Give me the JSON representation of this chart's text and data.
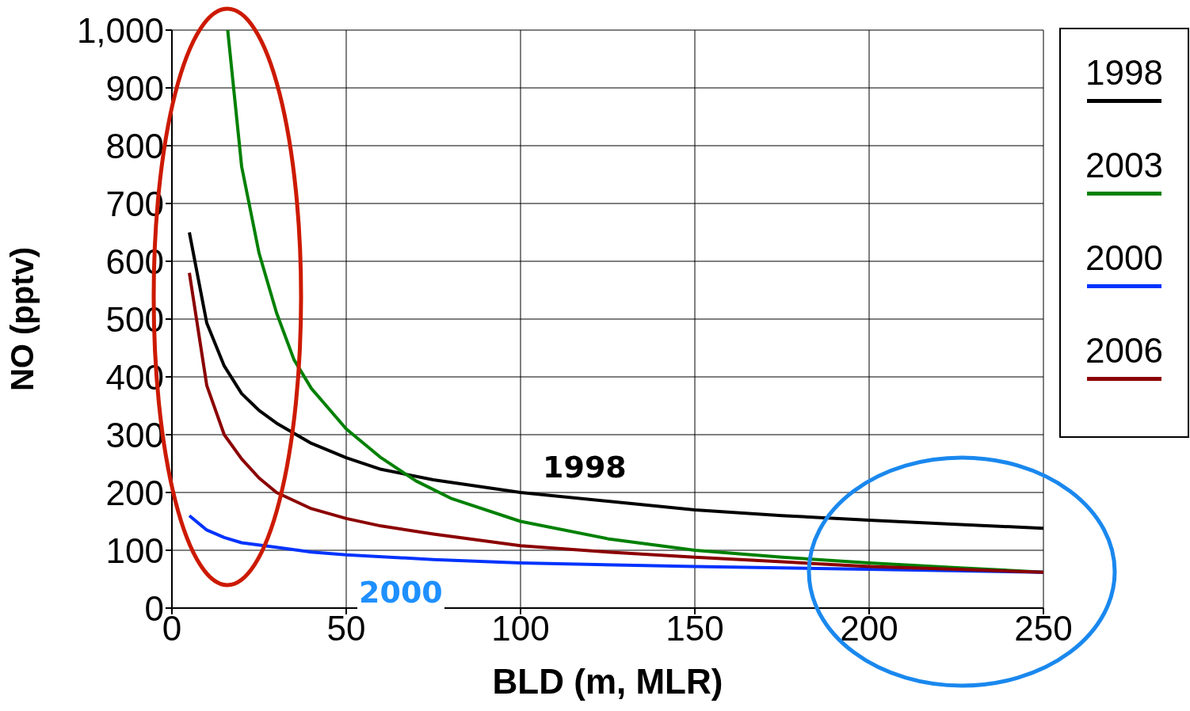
{
  "chart_data": {
    "type": "line",
    "xlabel": "BLD (m, MLR)",
    "ylabel": "NO (pptv)",
    "xlim": [
      0,
      250
    ],
    "xticks": [
      0,
      50,
      100,
      150,
      200,
      250
    ],
    "ylim": [
      0,
      1000
    ],
    "yticks": [
      0,
      100,
      200,
      300,
      400,
      500,
      600,
      700,
      800,
      900,
      {
        "value": 1000,
        "label": "1,000"
      }
    ],
    "grid": true,
    "legend": "right",
    "marker": "none",
    "line_style": "solid",
    "series": [
      {
        "name": "1998",
        "color": "#000000",
        "x": [
          5,
          10,
          15,
          20,
          25,
          30,
          40,
          50,
          60,
          75,
          100,
          125,
          150,
          175,
          200,
          225,
          250
        ],
        "values": [
          650,
          493,
          419,
          371,
          342,
          320,
          285,
          260,
          240,
          222,
          200,
          185,
          170,
          160,
          152,
          145,
          138
        ]
      },
      {
        "name": "2003",
        "color": "#008000",
        "x": [
          16,
          20,
          25,
          30,
          35,
          40,
          50,
          60,
          70,
          80,
          100,
          125,
          150,
          175,
          200,
          225,
          250
        ],
        "values": [
          1000,
          764,
          614,
          511,
          430,
          380,
          310,
          260,
          220,
          190,
          150,
          120,
          100,
          88,
          78,
          70,
          62
        ]
      },
      {
        "name": "2000",
        "color": "#0033ff",
        "x": [
          5,
          10,
          15,
          20,
          30,
          40,
          50,
          75,
          100,
          150,
          200,
          250
        ],
        "values": [
          160,
          135,
          122,
          113,
          105,
          97,
          92,
          84,
          78,
          72,
          67,
          62
        ]
      },
      {
        "name": "2006",
        "color": "#8b0000",
        "x": [
          5,
          10,
          15,
          20,
          25,
          30,
          40,
          50,
          60,
          75,
          100,
          125,
          150,
          175,
          200,
          225,
          250
        ],
        "values": [
          580,
          385,
          300,
          258,
          225,
          200,
          172,
          155,
          142,
          128,
          108,
          97,
          88,
          80,
          72,
          67,
          62
        ]
      }
    ],
    "annotations": [
      "1998",
      "2000"
    ]
  }
}
